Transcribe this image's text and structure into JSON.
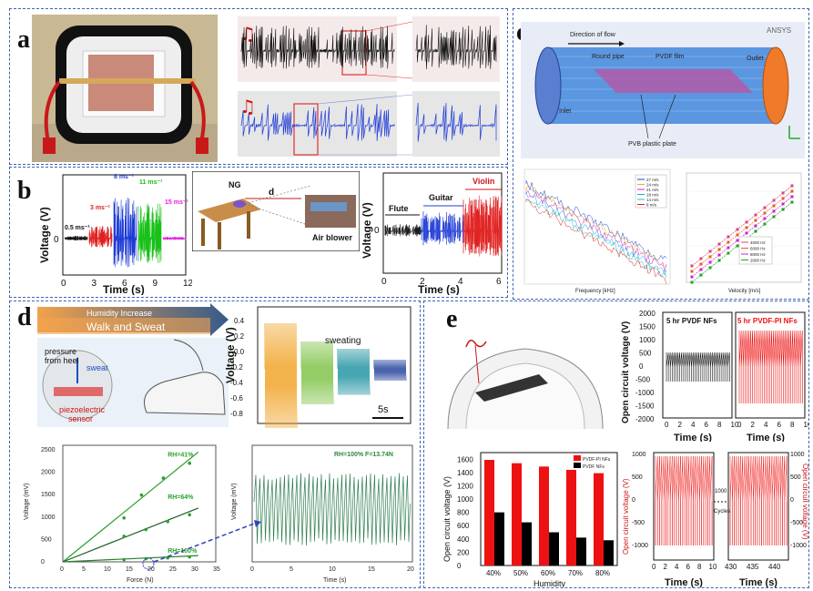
{
  "panels": {
    "a": {
      "label": "a"
    },
    "b": {
      "label": "b",
      "ylabel": "Voltage (V)",
      "xlabel": "Time (s)",
      "xticks": [
        "0",
        "3",
        "6",
        "9",
        "12"
      ],
      "yticks": [
        "0"
      ],
      "speeds": [
        "0.5 ms⁻¹",
        "3 ms⁻¹",
        "8 ms⁻¹",
        "11 ms⁻¹",
        "15 ms⁻¹"
      ],
      "ng_label": "NG",
      "d_label": "d",
      "air_blower": "Air blower",
      "music": {
        "ylabel": "Voltage (V)",
        "xlabel": "Time (s)",
        "xticks": [
          "0",
          "2",
          "4",
          "6"
        ],
        "yticks": [
          "0"
        ],
        "flute": "Flute",
        "guitar": "Guitar",
        "violin": "Violin"
      }
    },
    "c": {
      "label": "c",
      "direction": "Direction of flow",
      "round_pipe": "Round pipe",
      "pvdf_film": "PVDF film",
      "outlet": "Outlet",
      "inlet": "Inlet",
      "pvb": "PVB plastic plate",
      "ansys": "ANSYS",
      "freq_xlabel": "Frequency [kHz]",
      "freq_ylabel": "log(V)",
      "freq_legend": [
        "27 m/s",
        "24 m/s",
        "21 m/s",
        "18 m/s",
        "14 m/s",
        "8 m/s"
      ],
      "vel_xlabel": "Velocity [m/s]",
      "vel_ylabel": "log(V)",
      "vel_legend": [
        "4000 Hz",
        "6000 Hz",
        "8000 Hz",
        "2000 Hz"
      ]
    },
    "d": {
      "label": "d",
      "humidity_increase": "Humidity Increase",
      "walk_sweat": "Walk and Sweat",
      "pressure": "pressure",
      "from_heel": "from heel",
      "sweat": "sweat",
      "piezo": "piezoelectric",
      "sensor": "sensor",
      "sweating": "sweating",
      "ylabel": "Voltage (V)",
      "yticks": [
        "0.4",
        "0.2",
        "0.0",
        "-0.2",
        "-0.4",
        "-0.6",
        "-0.8"
      ],
      "scale": "5s",
      "force": {
        "ylabel": "Voltage (mV)",
        "xlabel": "Force (N)",
        "xticks": [
          "0",
          "5",
          "10",
          "15",
          "20",
          "25",
          "30",
          "35"
        ],
        "yticks": [
          "0",
          "500",
          "1000",
          "1500",
          "2000",
          "2500"
        ],
        "rh41": "RH=41%",
        "rh64": "RH=64%",
        "rh100": "RH=100%"
      },
      "trace": {
        "ylabel": "Voltage (mV)",
        "xlabel": "Time (s)",
        "xticks": [
          "0",
          "5",
          "10",
          "15",
          "20"
        ],
        "note": "RH=100%  F=13.74N"
      }
    },
    "e": {
      "label": "e",
      "ocv_ylabel": "Open circuit voltage (V)",
      "time_xlabel": "Time (s)",
      "pvdf_title": "5 hr PVDF NFs",
      "pvdfpi_title": "5 hr PVDF-PI NFs",
      "ocv_yticks": [
        "2000",
        "1500",
        "1000",
        "500",
        "0",
        "-500",
        "-1000",
        "-1500",
        "-2000"
      ],
      "time_ticks": [
        "0",
        "2",
        "4",
        "6",
        "8",
        "10"
      ],
      "bar_legend": [
        "PVDF-PI NFs",
        "PVDF NFs"
      ],
      "bar_xlabel": "Humidity",
      "bar_yticks": [
        "0",
        "200",
        "400",
        "600",
        "800",
        "1000",
        "1200",
        "1400",
        "1600"
      ],
      "cyc_yticks": [
        "1000",
        "500",
        "0",
        "-500",
        "-1000"
      ],
      "cyc_ticks_a": [
        "0",
        "2",
        "4",
        "6",
        "8",
        "10"
      ],
      "cyc_ticks_b": [
        "430",
        "435",
        "440"
      ],
      "cyc_1000": "1000",
      "cyc_cycles": "Cycles"
    }
  },
  "chart_data": [
    {
      "type": "bar",
      "xlabel": "Humidity",
      "ylabel": "Open circuit voltage (V)",
      "categories": [
        "40%",
        "50%",
        "60%",
        "70%",
        "80%"
      ],
      "ylim": [
        0,
        1700
      ],
      "series": [
        {
          "name": "PVDF-PI NFs",
          "values": [
            1590,
            1540,
            1490,
            1440,
            1390
          ],
          "color": "#ee1111"
        },
        {
          "name": "PVDF NFs",
          "values": [
            800,
            650,
            500,
            420,
            380
          ],
          "color": "#000000"
        }
      ],
      "legend": "top-right"
    },
    {
      "type": "scatter",
      "xlabel": "Force (N)",
      "ylabel": "Voltage (mV)",
      "xlim": [
        0,
        35
      ],
      "ylim": [
        0,
        2600
      ],
      "series": [
        {
          "name": "RH=41%",
          "x": [
            14,
            18,
            23,
            29
          ],
          "y": [
            980,
            1490,
            1870,
            2200
          ]
        },
        {
          "name": "RH=64%",
          "x": [
            14,
            19,
            24,
            29
          ],
          "y": [
            570,
            720,
            900,
            1050
          ]
        },
        {
          "name": "RH=100%",
          "x": [
            14,
            19,
            24,
            29
          ],
          "y": [
            50,
            70,
            90,
            110
          ]
        }
      ]
    }
  ]
}
